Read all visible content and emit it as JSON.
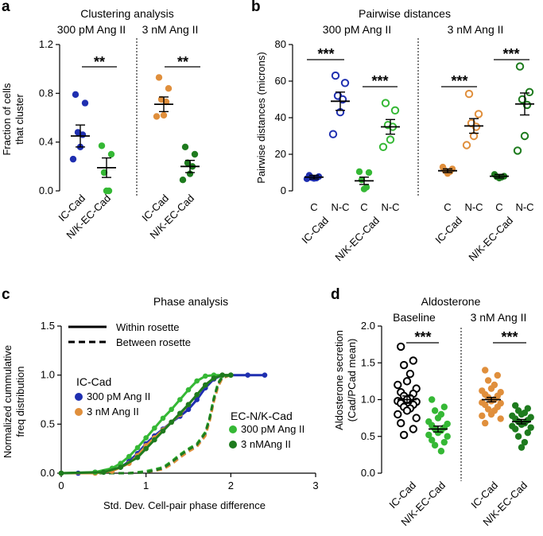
{
  "colors": {
    "blue": "#1f2fb0",
    "green": "#35b835",
    "orange": "#e08f3c",
    "dark_green": "#1e7b1e",
    "black": "#000000"
  },
  "chart_data": [
    {
      "panel": "a",
      "type": "scatter",
      "title": "Clustering analysis",
      "ylabel": "Fraction of cells that cluster",
      "ylabel_lines": [
        "Fraction of cells",
        "that cluster"
      ],
      "ylim": [
        0,
        1.2
      ],
      "yticks": [
        "0.0",
        "0.4",
        "0.8",
        "1.2"
      ],
      "groups": [
        {
          "label": "300 pM Ang II",
          "significance": "**",
          "categories": [
            {
              "name": "IC-Cad",
              "color": "#1f2fb0",
              "fill": "filled",
              "mean": 0.45,
              "sem": 0.09,
              "values": [
                0.79,
                0.72,
                0.48,
                0.46,
                0.36,
                0.26
              ]
            },
            {
              "name": "N/K-EC-Cad",
              "color": "#35b835",
              "fill": "filled",
              "mean": 0.19,
              "sem": 0.08,
              "values": [
                0.37,
                0.3,
                0.15,
                0.0,
                0.0
              ]
            }
          ]
        },
        {
          "label": "3 nM Ang II",
          "significance": "**",
          "categories": [
            {
              "name": "IC-Cad",
              "color": "#e08f3c",
              "fill": "filled",
              "mean": 0.71,
              "sem": 0.06,
              "values": [
                0.93,
                0.84,
                0.75,
                0.73,
                0.62,
                0.61
              ]
            },
            {
              "name": "N/K-EC-Cad",
              "color": "#1e7b1e",
              "fill": "filled",
              "mean": 0.2,
              "sem": 0.05,
              "values": [
                0.36,
                0.3,
                0.23,
                0.2,
                0.14,
                0.09
              ]
            }
          ]
        }
      ]
    },
    {
      "panel": "b",
      "type": "scatter",
      "title": "Pairwise distances",
      "ylabel": "Pairwise distances (microns)",
      "ylim": [
        0,
        80
      ],
      "yticks": [
        "0",
        "20",
        "40",
        "60",
        "80"
      ],
      "groups": [
        {
          "label": "300 pM Ang II",
          "ticks": [
            "C",
            "N-C",
            "C",
            "N-C"
          ],
          "groups_x": [
            "IC-Cad",
            "N/K-EC-Cad"
          ],
          "significance": [
            "***",
            "***"
          ],
          "categories": [
            {
              "name": "C",
              "group": "IC-Cad",
              "color": "#1f2fb0",
              "fill": "filled",
              "mean": 7.5,
              "sem": 1.0,
              "values": [
                8.5,
                7.8,
                7.2,
                7.0,
                6.8,
                6.6
              ]
            },
            {
              "name": "N-C",
              "group": "IC-Cad",
              "color": "#1f2fb0",
              "fill": "open",
              "mean": 49,
              "sem": 5,
              "values": [
                63,
                59,
                52,
                50,
                43,
                31
              ]
            },
            {
              "name": "C",
              "group": "N/K-EC-Cad",
              "color": "#35b835",
              "fill": "filled",
              "mean": 5.5,
              "sem": 2.0,
              "values": [
                10.5,
                10.0,
                6.0,
                2.0,
                1.0
              ]
            },
            {
              "name": "N-C",
              "group": "N/K-EC-Cad",
              "color": "#35b835",
              "fill": "open",
              "mean": 35,
              "sem": 4,
              "values": [
                48,
                44,
                36,
                35,
                28,
                24
              ]
            }
          ]
        },
        {
          "label": "3 nM Ang II",
          "ticks": [
            "C",
            "N-C",
            "C",
            "N-C"
          ],
          "groups_x": [
            "IC-Cad",
            "N/K-EC-Cad"
          ],
          "significance": [
            "***",
            "***"
          ],
          "categories": [
            {
              "name": "C",
              "group": "IC-Cad",
              "color": "#e08f3c",
              "fill": "filled",
              "mean": 11,
              "sem": 1.0,
              "values": [
                13.0,
                12.0,
                11.0,
                10.5,
                9.5
              ]
            },
            {
              "name": "N-C",
              "group": "IC-Cad",
              "color": "#e08f3c",
              "fill": "open",
              "mean": 35.5,
              "sem": 4,
              "values": [
                53,
                42,
                37,
                35,
                30,
                25
              ]
            },
            {
              "name": "C",
              "group": "N/K-EC-Cad",
              "color": "#1e7b1e",
              "fill": "filled",
              "mean": 8,
              "sem": 1.0,
              "values": [
                9.0,
                8.0,
                7.7,
                7.5,
                7.0
              ]
            },
            {
              "name": "N-C",
              "group": "N/K-EC-Cad",
              "color": "#1e7b1e",
              "fill": "open",
              "mean": 47.5,
              "sem": 6,
              "values": [
                68,
                54,
                50,
                47,
                30,
                22
              ]
            }
          ]
        }
      ]
    },
    {
      "panel": "c",
      "type": "line",
      "title": "Phase analysis",
      "xlabel": "Std. Dev. Cell-pair phase difference",
      "ylabel": "Normalized cummulative freq distribution",
      "ylabel_lines": [
        "Normalized cummulative",
        "freq distribution"
      ],
      "xlim": [
        0,
        3
      ],
      "ylim": [
        0,
        1.5
      ],
      "xticks": [
        "0",
        "1",
        "2",
        "3"
      ],
      "yticks": [
        "0.0",
        "0.5",
        "1.0",
        "1.5"
      ],
      "line_legend": [
        {
          "label": "Within rosette",
          "style": "solid"
        },
        {
          "label": "Between rosette",
          "style": "dashed"
        }
      ],
      "legend_groups": [
        {
          "title": "IC-Cad",
          "items": [
            {
              "label": "300 pM Ang II",
              "color": "#1f2fb0"
            },
            {
              "label": "3 nM Ang II",
              "color": "#e08f3c"
            }
          ]
        },
        {
          "title": "EC-N/K-Cad",
          "items": [
            {
              "label": "300 pM Ang II",
              "color": "#35b835"
            },
            {
              "label": "3 nMAng II",
              "color": "#1e7b1e"
            }
          ]
        }
      ],
      "series": [
        {
          "name": "IC-Cad 300 pM Ang II, Within rosette",
          "color": "#1f2fb0",
          "style": "solid",
          "x": [
            0,
            0.2,
            0.4,
            0.6,
            0.7,
            0.8,
            0.9,
            1.0,
            1.1,
            1.2,
            1.3,
            1.4,
            1.5,
            1.6,
            1.7,
            1.8,
            1.9,
            2.0,
            2.2,
            2.4
          ],
          "y": [
            0,
            0,
            0.01,
            0.03,
            0.06,
            0.12,
            0.2,
            0.3,
            0.38,
            0.45,
            0.52,
            0.58,
            0.65,
            0.75,
            0.87,
            0.96,
            1.0,
            1.0,
            1.0,
            1.0
          ]
        },
        {
          "name": "IC-Cad 3 nM Ang II, Within rosette",
          "color": "#e08f3c",
          "style": "solid",
          "x": [
            0,
            0.4,
            0.6,
            0.8,
            0.9,
            1.0,
            1.1,
            1.2,
            1.3,
            1.4,
            1.5,
            1.6,
            1.7,
            1.8,
            1.9,
            2.0
          ],
          "y": [
            0,
            0,
            0.02,
            0.1,
            0.18,
            0.28,
            0.36,
            0.44,
            0.52,
            0.6,
            0.7,
            0.8,
            0.9,
            0.97,
            1.0,
            1.0
          ]
        },
        {
          "name": "EC-N/K-Cad 300 pM Ang II, Within rosette",
          "color": "#35b835",
          "style": "solid",
          "x": [
            0,
            0.4,
            0.6,
            0.7,
            0.8,
            0.9,
            1.0,
            1.1,
            1.2,
            1.3,
            1.4,
            1.5,
            1.6,
            1.7,
            1.8,
            2.0
          ],
          "y": [
            0,
            0.01,
            0.05,
            0.1,
            0.17,
            0.26,
            0.36,
            0.46,
            0.56,
            0.65,
            0.75,
            0.85,
            0.94,
            0.99,
            1.0,
            1.0
          ]
        },
        {
          "name": "EC-N/K-Cad 3 nMAng II, Within rosette",
          "color": "#1e7b1e",
          "style": "solid",
          "x": [
            0,
            0.5,
            0.7,
            0.9,
            1.0,
            1.1,
            1.2,
            1.3,
            1.4,
            1.5,
            1.6,
            1.7,
            1.8,
            1.9,
            2.0
          ],
          "y": [
            0,
            0.01,
            0.06,
            0.16,
            0.25,
            0.34,
            0.43,
            0.52,
            0.61,
            0.7,
            0.8,
            0.9,
            0.97,
            1.0,
            1.0
          ]
        },
        {
          "name": "IC-Cad 300 pM Ang II, Between rosette",
          "color": "#1f2fb0",
          "style": "dashed",
          "x": [
            0,
            0.8,
            1.0,
            1.2,
            1.3,
            1.4,
            1.5,
            1.6,
            1.7,
            1.75,
            1.8,
            1.85,
            1.9,
            2.0
          ],
          "y": [
            0,
            0,
            0.01,
            0.05,
            0.1,
            0.17,
            0.23,
            0.28,
            0.4,
            0.55,
            0.75,
            0.9,
            0.98,
            1.0
          ]
        },
        {
          "name": "IC-Cad 3 nM Ang II, Between rosette",
          "color": "#e08f3c",
          "style": "dashed",
          "x": [
            0,
            0.8,
            1.0,
            1.2,
            1.3,
            1.4,
            1.5,
            1.6,
            1.7,
            1.75,
            1.8,
            1.85,
            1.9,
            2.0
          ],
          "y": [
            0,
            0,
            0.01,
            0.04,
            0.09,
            0.16,
            0.22,
            0.27,
            0.38,
            0.53,
            0.73,
            0.88,
            0.97,
            1.0
          ]
        },
        {
          "name": "EC-N/K-Cad 300 pM Ang II, Between rosette",
          "color": "#35b835",
          "style": "dashed",
          "x": [
            0,
            0.8,
            1.0,
            1.2,
            1.3,
            1.4,
            1.5,
            1.6,
            1.7,
            1.75,
            1.8,
            1.85,
            1.9,
            2.0
          ],
          "y": [
            0,
            0,
            0.02,
            0.06,
            0.12,
            0.19,
            0.25,
            0.3,
            0.42,
            0.57,
            0.77,
            0.92,
            0.99,
            1.0
          ]
        },
        {
          "name": "EC-N/K-Cad 3 nMAng II, Between rosette",
          "color": "#1e7b1e",
          "style": "dashed",
          "x": [
            0,
            0.8,
            1.0,
            1.2,
            1.3,
            1.4,
            1.5,
            1.6,
            1.7,
            1.75,
            1.8,
            1.85,
            1.9,
            2.0
          ],
          "y": [
            0,
            0,
            0.01,
            0.05,
            0.11,
            0.18,
            0.24,
            0.29,
            0.41,
            0.56,
            0.76,
            0.91,
            0.98,
            1.0
          ]
        }
      ]
    },
    {
      "panel": "d",
      "type": "scatter",
      "title": "Aldosterone",
      "ylabel": "Aldosterone secretion (Cad/PCad mean)",
      "ylabel_lines": [
        "Aldosterone secretion",
        "(Cad/PCad mean)"
      ],
      "ylim": [
        0,
        2.0
      ],
      "yticks": [
        "0.0",
        "0.5",
        "1.0",
        "1.5",
        "2.0"
      ],
      "groups": [
        {
          "label": "Baseline",
          "significance": "***",
          "categories": [
            {
              "name": "IC-Cad",
              "color": "#000000",
              "fill": "open",
              "mean": 1.0,
              "sem": 0.05,
              "values": [
                1.72,
                1.53,
                1.47,
                1.35,
                1.25,
                1.2,
                1.15,
                1.1,
                1.08,
                1.05,
                1.02,
                1.0,
                0.98,
                0.97,
                0.95,
                0.93,
                0.9,
                0.88,
                0.85,
                0.8,
                0.75,
                0.68,
                0.6,
                0.52
              ]
            },
            {
              "name": "N/K-EC-Cad",
              "color": "#35b835",
              "fill": "filled",
              "mean": 0.6,
              "sem": 0.04,
              "values": [
                1.0,
                0.9,
                0.85,
                0.8,
                0.75,
                0.7,
                0.67,
                0.65,
                0.62,
                0.6,
                0.58,
                0.55,
                0.52,
                0.5,
                0.45,
                0.42,
                0.38,
                0.3
              ]
            }
          ]
        },
        {
          "label": "3 nM Ang II",
          "significance": "***",
          "categories": [
            {
              "name": "IC-Cad",
              "color": "#e08f3c",
              "fill": "filled",
              "mean": 1.0,
              "sem": 0.03,
              "values": [
                1.4,
                1.33,
                1.26,
                1.2,
                1.15,
                1.12,
                1.1,
                1.07,
                1.05,
                1.03,
                1.0,
                0.98,
                0.96,
                0.95,
                0.93,
                0.9,
                0.87,
                0.85,
                0.8,
                0.78,
                0.74,
                0.68
              ]
            },
            {
              "name": "N/K-EC-Cad",
              "color": "#1e7b1e",
              "fill": "filled",
              "mean": 0.7,
              "sem": 0.03,
              "values": [
                0.92,
                0.88,
                0.85,
                0.82,
                0.8,
                0.78,
                0.76,
                0.74,
                0.72,
                0.7,
                0.68,
                0.66,
                0.64,
                0.62,
                0.6,
                0.55,
                0.5,
                0.42,
                0.35
              ]
            }
          ]
        }
      ]
    }
  ]
}
